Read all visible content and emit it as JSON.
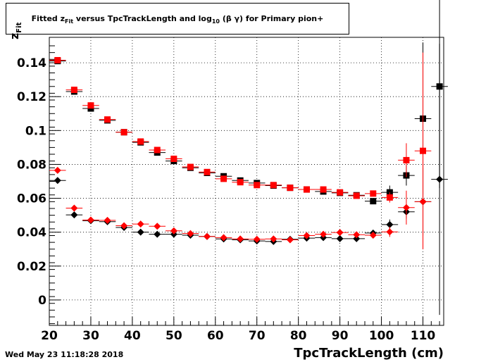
{
  "title": {
    "prefix": "Fitted  z",
    "sub1": "Fit",
    "middle": "  versus TpcTrackLength and log",
    "sub2": "10",
    "suffix": " (β γ) for Primary pion+"
  },
  "footer": {
    "timestamp": "Wed May 23 11:18:28 2018"
  },
  "chart_data": {
    "type": "scatter",
    "xlabel": "TpcTrackLength (cm)",
    "ylabel": "z",
    "ylabel_sub": "Fit",
    "xlim": [
      20,
      115
    ],
    "ylim": [
      -0.015,
      0.155
    ],
    "x_ticks": [
      20,
      30,
      40,
      50,
      60,
      70,
      80,
      90,
      100,
      110
    ],
    "y_ticks": [
      0,
      0.02,
      0.04,
      0.06,
      0.08,
      0.1,
      0.12,
      0.14
    ],
    "y_tick_labels": [
      "0",
      "0.02",
      "0.04",
      "0.06",
      "0.08",
      "0.1",
      "0.12",
      "0.14"
    ],
    "grid": true,
    "x_bin_half_width": 2,
    "series": [
      {
        "marker": "square",
        "color": "#000000",
        "points": [
          {
            "x": 22,
            "y": 0.141
          },
          {
            "x": 26,
            "y": 0.123
          },
          {
            "x": 30,
            "y": 0.113
          },
          {
            "x": 34,
            "y": 0.106
          },
          {
            "x": 38,
            "y": 0.099
          },
          {
            "x": 42,
            "y": 0.093
          },
          {
            "x": 46,
            "y": 0.087
          },
          {
            "x": 50,
            "y": 0.082
          },
          {
            "x": 54,
            "y": 0.078
          },
          {
            "x": 58,
            "y": 0.075
          },
          {
            "x": 62,
            "y": 0.073
          },
          {
            "x": 66,
            "y": 0.0705
          },
          {
            "x": 70,
            "y": 0.069
          },
          {
            "x": 74,
            "y": 0.0675
          },
          {
            "x": 78,
            "y": 0.0662
          },
          {
            "x": 82,
            "y": 0.0652
          },
          {
            "x": 86,
            "y": 0.064
          },
          {
            "x": 90,
            "y": 0.0632
          },
          {
            "x": 94,
            "y": 0.0618
          },
          {
            "x": 98,
            "y": 0.0583
          },
          {
            "x": 102,
            "y": 0.0635,
            "err": 0.004
          },
          {
            "x": 106,
            "y": 0.0735,
            "err": 0.006
          },
          {
            "x": 110,
            "y": 0.107,
            "err": 0.045
          },
          {
            "x": 114,
            "y": 0.126,
            "err": 0.06
          }
        ]
      },
      {
        "marker": "square",
        "color": "#ff0000",
        "points": [
          {
            "x": 22,
            "y": 0.1415
          },
          {
            "x": 26,
            "y": 0.124
          },
          {
            "x": 30,
            "y": 0.1148
          },
          {
            "x": 34,
            "y": 0.1065
          },
          {
            "x": 38,
            "y": 0.099
          },
          {
            "x": 42,
            "y": 0.0935
          },
          {
            "x": 46,
            "y": 0.0885
          },
          {
            "x": 50,
            "y": 0.0833
          },
          {
            "x": 54,
            "y": 0.0785
          },
          {
            "x": 58,
            "y": 0.0755
          },
          {
            "x": 62,
            "y": 0.0715
          },
          {
            "x": 66,
            "y": 0.0695
          },
          {
            "x": 70,
            "y": 0.0678
          },
          {
            "x": 74,
            "y": 0.0678
          },
          {
            "x": 78,
            "y": 0.0662
          },
          {
            "x": 82,
            "y": 0.0652
          },
          {
            "x": 86,
            "y": 0.0652
          },
          {
            "x": 90,
            "y": 0.0635
          },
          {
            "x": 94,
            "y": 0.0615
          },
          {
            "x": 98,
            "y": 0.0628
          },
          {
            "x": 102,
            "y": 0.0605,
            "err": 0.003
          },
          {
            "x": 106,
            "y": 0.0825,
            "err": 0.01
          },
          {
            "x": 110,
            "y": 0.088,
            "err": 0.058
          }
        ]
      },
      {
        "marker": "diamond",
        "color": "#000000",
        "points": [
          {
            "x": 22,
            "y": 0.0705
          },
          {
            "x": 26,
            "y": 0.0502
          },
          {
            "x": 30,
            "y": 0.0468
          },
          {
            "x": 34,
            "y": 0.0462
          },
          {
            "x": 38,
            "y": 0.0428
          },
          {
            "x": 42,
            "y": 0.04
          },
          {
            "x": 46,
            "y": 0.0388
          },
          {
            "x": 50,
            "y": 0.0388
          },
          {
            "x": 54,
            "y": 0.0382
          },
          {
            "x": 58,
            "y": 0.0375
          },
          {
            "x": 62,
            "y": 0.036
          },
          {
            "x": 66,
            "y": 0.0355
          },
          {
            "x": 70,
            "y": 0.0348
          },
          {
            "x": 74,
            "y": 0.0345
          },
          {
            "x": 78,
            "y": 0.0358
          },
          {
            "x": 82,
            "y": 0.0365
          },
          {
            "x": 86,
            "y": 0.0368
          },
          {
            "x": 90,
            "y": 0.0362
          },
          {
            "x": 94,
            "y": 0.0362
          },
          {
            "x": 98,
            "y": 0.0395
          },
          {
            "x": 102,
            "y": 0.0445,
            "err": 0.003
          },
          {
            "x": 106,
            "y": 0.052,
            "err": 0.004
          },
          {
            "x": 110,
            "y": 0.058,
            "err": 0.02
          },
          {
            "x": 114,
            "y": 0.0712,
            "err": 0.08
          }
        ]
      },
      {
        "marker": "diamond",
        "color": "#ff0000",
        "points": [
          {
            "x": 22,
            "y": 0.0765
          },
          {
            "x": 26,
            "y": 0.0542
          },
          {
            "x": 30,
            "y": 0.0472
          },
          {
            "x": 34,
            "y": 0.047
          },
          {
            "x": 38,
            "y": 0.0438
          },
          {
            "x": 42,
            "y": 0.0448
          },
          {
            "x": 46,
            "y": 0.0435
          },
          {
            "x": 50,
            "y": 0.0408
          },
          {
            "x": 54,
            "y": 0.0392
          },
          {
            "x": 58,
            "y": 0.0375
          },
          {
            "x": 62,
            "y": 0.0368
          },
          {
            "x": 66,
            "y": 0.036
          },
          {
            "x": 70,
            "y": 0.0358
          },
          {
            "x": 74,
            "y": 0.036
          },
          {
            "x": 78,
            "y": 0.0355
          },
          {
            "x": 82,
            "y": 0.038
          },
          {
            "x": 86,
            "y": 0.0388
          },
          {
            "x": 90,
            "y": 0.0398
          },
          {
            "x": 94,
            "y": 0.0385
          },
          {
            "x": 98,
            "y": 0.0382
          },
          {
            "x": 102,
            "y": 0.0402,
            "err": 0.003
          },
          {
            "x": 106,
            "y": 0.0545,
            "err": 0.01
          },
          {
            "x": 110,
            "y": 0.058,
            "err": 0.028
          }
        ]
      }
    ]
  }
}
